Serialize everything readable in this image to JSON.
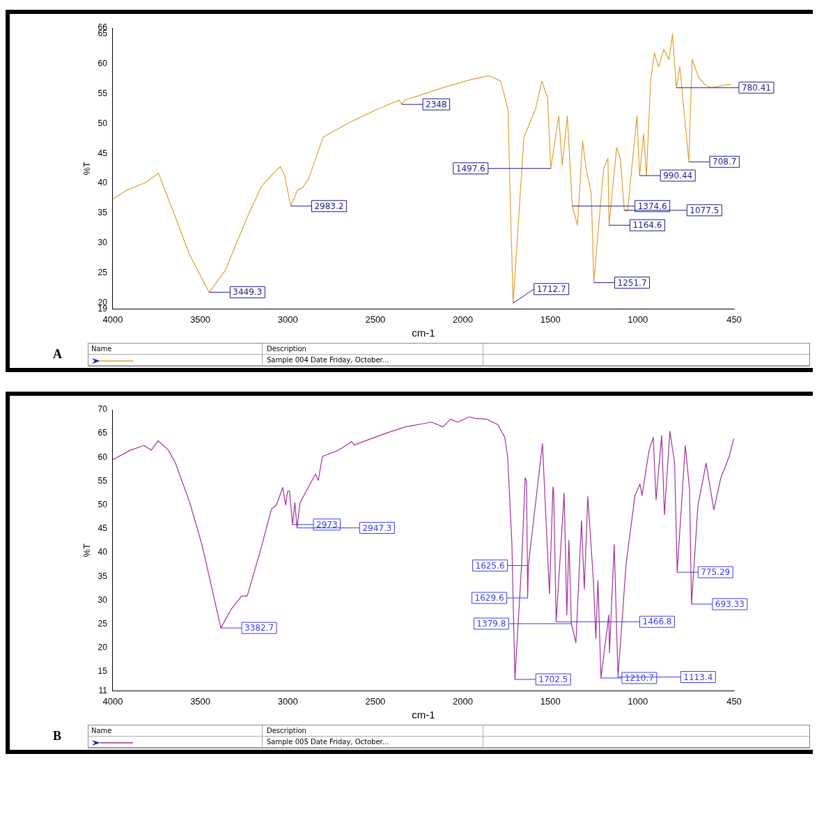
{
  "chart_data": [
    {
      "type": "line",
      "xlabel": "cm-1",
      "ylabel": "%T",
      "xlim": [
        4000,
        450
      ],
      "xticks": [
        4000,
        3500,
        3000,
        2500,
        2000,
        1500,
        1000,
        450
      ],
      "ylim": [
        19,
        66
      ],
      "yticks": [
        19,
        20,
        25,
        30,
        35,
        40,
        45,
        50,
        55,
        60,
        65,
        66
      ],
      "grid": false,
      "legend": false,
      "marker": "none",
      "line_style": "solid",
      "series": [
        {
          "color": "#e0a030",
          "x": [
            4000,
            3917,
            3814,
            3739,
            3710,
            3648,
            3565,
            3482,
            3449.3,
            3358,
            3234,
            3151,
            3068,
            3043,
            3018,
            2983.2,
            2944,
            2915,
            2882,
            2840,
            2799,
            2654,
            2488,
            2364,
            2348,
            2330,
            2281,
            2115,
            1950,
            1846,
            1784,
            1742,
            1730,
            1712.7,
            1651,
            1618,
            1585,
            1548,
            1515,
            1497.6,
            1452,
            1432,
            1403,
            1374.6,
            1345,
            1316,
            1295,
            1266,
            1251.7,
            1196,
            1171,
            1164.6,
            1121,
            1100,
            1077.5,
            1059,
            1005,
            990.44,
            967,
            951,
            927,
            906,
            881,
            852,
            822,
            802,
            790,
            780.41,
            760,
            708.7,
            690,
            653,
            616,
            582,
            541,
            500,
            467
          ],
          "values": [
            37.4,
            38.9,
            40.1,
            41.7,
            39.5,
            34.8,
            28.3,
            23.6,
            21.8,
            25.4,
            34.2,
            39.5,
            42.1,
            42.8,
            41.3,
            36.2,
            38.9,
            39.3,
            40.7,
            44.2,
            47.7,
            50.1,
            52.4,
            53.9,
            53.2,
            54.0,
            54.4,
            56.0,
            57.4,
            58.0,
            57.1,
            52.4,
            38.3,
            20.0,
            47.7,
            50.1,
            52.4,
            57.1,
            54.2,
            42.5,
            51.3,
            43.0,
            51.3,
            36.2,
            33.0,
            47.1,
            42.4,
            38.3,
            23.4,
            42.4,
            44.2,
            33.0,
            46.0,
            44.2,
            35.5,
            35.4,
            51.3,
            41.3,
            48.3,
            41.3,
            57.1,
            61.8,
            59.5,
            62.4,
            60.7,
            65.0,
            60.1,
            56.0,
            59.5,
            43.6,
            60.7,
            57.7,
            56.5,
            56.0,
            56.2,
            56.5,
            56.5
          ]
        }
      ],
      "annotations": [
        "A",
        "Name",
        "Description",
        "Sample 004 Date Friday, October...",
        {
          "text": "3449.3",
          "x": 3449.3,
          "y": 21.8
        },
        {
          "text": "2983.2",
          "x": 2983.2,
          "y": 36.2
        },
        {
          "text": "2348",
          "x": 2348,
          "y": 53.2
        },
        {
          "text": "1712.7",
          "x": 1712.7,
          "y": 20.0
        },
        {
          "text": "1497.6",
          "x": 1497.6,
          "y": 42.5
        },
        {
          "text": "1374.6",
          "x": 1374.6,
          "y": 36.2
        },
        {
          "text": "1251.7",
          "x": 1251.7,
          "y": 23.4
        },
        {
          "text": "1164.6",
          "x": 1164.6,
          "y": 33.0
        },
        {
          "text": "1077.5",
          "x": 1077.5,
          "y": 35.5
        },
        {
          "text": "990.44",
          "x": 990.44,
          "y": 41.3
        },
        {
          "text": "780.41",
          "x": 780.41,
          "y": 56.0
        },
        {
          "text": "708.7",
          "x": 708.7,
          "y": 43.6
        }
      ]
    },
    {
      "type": "line",
      "xlabel": "cm-1",
      "ylabel": "%T",
      "xlim": [
        4000,
        450
      ],
      "xticks": [
        4000,
        3500,
        3000,
        2500,
        2000,
        1500,
        1000,
        450
      ],
      "ylim": [
        11,
        70
      ],
      "yticks": [
        11,
        15,
        20,
        25,
        30,
        35,
        40,
        45,
        50,
        55,
        60,
        65,
        70
      ],
      "grid": false,
      "legend": false,
      "marker": "none",
      "line_style": "solid",
      "series": [
        {
          "color": "#a0309a",
          "x": [
            4000,
            3900,
            3821,
            3781,
            3741,
            3682,
            3642,
            3562,
            3490,
            3431,
            3382.7,
            3324,
            3264,
            3232,
            3156,
            3093,
            3065,
            3029,
            3013,
            3001,
            2990,
            2973,
            2960,
            2947.3,
            2930,
            2842,
            2826,
            2802,
            2711,
            2635,
            2620,
            2512,
            2420,
            2329,
            2178,
            2114,
            2070,
            2030,
            1963,
            1931,
            1863,
            1800,
            1760,
            1744,
            1720,
            1702.5,
            1664,
            1644,
            1636,
            1629.6,
            1625.6,
            1545,
            1505,
            1485,
            1481,
            1466.8,
            1421,
            1406,
            1394,
            1379.8,
            1354,
            1322,
            1306,
            1286,
            1254,
            1240,
            1228,
            1210.7,
            1166,
            1162,
            1135,
            1113.4,
            1067,
            1016,
            988,
            976,
            936,
            912,
            896,
            864,
            848,
            817,
            790,
            775.29,
            729,
            705,
            693.33,
            657,
            610,
            566,
            526,
            478,
            452
          ],
          "values": [
            59.5,
            61.5,
            62.5,
            61.5,
            63.5,
            61.5,
            58.8,
            50.7,
            41.6,
            32.1,
            24.2,
            28.1,
            30.9,
            30.9,
            40.5,
            49.2,
            50.0,
            53.7,
            50.0,
            52.9,
            52.9,
            45.9,
            50.5,
            45.2,
            50.5,
            56.5,
            55.2,
            60.2,
            61.5,
            63.3,
            62.6,
            64.1,
            65.3,
            66.4,
            67.4,
            66.4,
            68.0,
            67.4,
            68.5,
            68.2,
            68.0,
            66.9,
            64.2,
            60.2,
            42.2,
            13.4,
            37.7,
            55.7,
            55.0,
            30.5,
            37.3,
            62.9,
            31.4,
            53.8,
            53.0,
            25.5,
            52.5,
            26.9,
            42.6,
            25.1,
            21.1,
            46.7,
            32.3,
            51.8,
            34.1,
            22.0,
            34.1,
            13.7,
            26.9,
            19.0,
            41.7,
            13.9,
            37.7,
            52.1,
            54.4,
            52.0,
            61.5,
            64.2,
            51.1,
            64.6,
            48.0,
            65.5,
            58.8,
            35.9,
            62.5,
            53.4,
            29.2,
            49.8,
            58.8,
            49.0,
            55.7,
            60.2,
            64.0
          ]
        }
      ],
      "annotations": [
        "B",
        "Name",
        "Description",
        "Sample 005 Date Friday, October...",
        {
          "text": "3382.7",
          "x": 3382.7,
          "y": 24.2
        },
        {
          "text": "2973",
          "x": 2973,
          "y": 45.9
        },
        {
          "text": "2947.3",
          "x": 2947.3,
          "y": 45.2
        },
        {
          "text": "1702.5",
          "x": 1702.5,
          "y": 13.4
        },
        {
          "text": "1629.6",
          "x": 1629.6,
          "y": 30.5
        },
        {
          "text": "1625.6",
          "x": 1625.6,
          "y": 37.3
        },
        {
          "text": "1466.8",
          "x": 1466.8,
          "y": 25.5
        },
        {
          "text": "1379.8",
          "x": 1379.8,
          "y": 25.1
        },
        {
          "text": "1210.7",
          "x": 1210.7,
          "y": 13.7
        },
        {
          "text": "1113.4",
          "x": 1113.4,
          "y": 13.9
        },
        {
          "text": "775.29",
          "x": 775.29,
          "y": 35.9
        },
        {
          "text": "693.33",
          "x": 693.33,
          "y": 29.2
        }
      ]
    }
  ]
}
